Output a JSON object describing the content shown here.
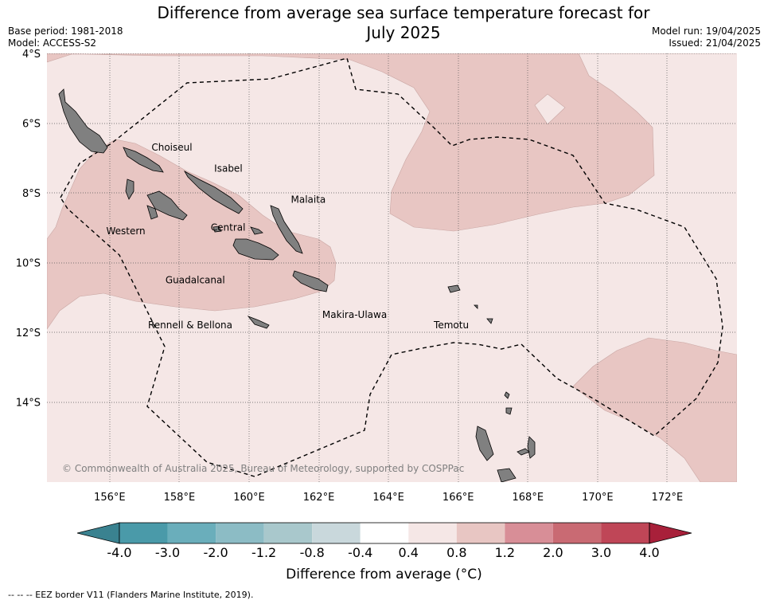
{
  "title_line1": "Difference from average sea surface temperature forecast for",
  "title_line2": "July 2025",
  "base_period": "Base period: 1981-2018",
  "model": "Model: ACCESS-S2",
  "model_run": "Model run: 19/04/2025",
  "issued": "Issued: 21/04/2025",
  "copyright": "© Commonwealth of Australia 2025, Bureau of Meteorology, supported by COSPPac",
  "footnote": "-- -- -- EEZ border V11 (Flanders Marine Institute, 2019).",
  "map": {
    "lon_ticks": [
      "156°E",
      "158°E",
      "160°E",
      "162°E",
      "164°E",
      "166°E",
      "168°E",
      "170°E",
      "172°E"
    ],
    "lat_ticks": [
      "4°S",
      "6°S",
      "8°S",
      "10°S",
      "12°S",
      "14°S"
    ],
    "provinces": [
      {
        "name": "Choiseul",
        "lon": 157.2,
        "lat": -6.7
      },
      {
        "name": "Isabel",
        "lon": 159.0,
        "lat": -7.3
      },
      {
        "name": "Malaita",
        "lon": 161.2,
        "lat": -8.2
      },
      {
        "name": "Western",
        "lon": 155.9,
        "lat": -9.1
      },
      {
        "name": "Central",
        "lon": 158.9,
        "lat": -9.0
      },
      {
        "name": "Guadalcanal",
        "lon": 157.6,
        "lat": -10.5
      },
      {
        "name": "Makira-Ulawa",
        "lon": 162.1,
        "lat": -11.5
      },
      {
        "name": "Rennell & Bellona",
        "lon": 157.1,
        "lat": -11.8
      },
      {
        "name": "Temotu",
        "lon": 165.3,
        "lat": -11.8
      }
    ],
    "ocean_background_color": "#f5e7e6",
    "warm_anomaly_color": "#e8c6c3",
    "land_color": "#7f7f7f"
  },
  "colorbar": {
    "title": "Difference from average (°C)",
    "tick_labels": [
      "-4.0",
      "-3.0",
      "-2.0",
      "-1.2",
      "-0.8",
      "-0.4",
      "0.4",
      "0.8",
      "1.2",
      "2.0",
      "3.0",
      "4.0"
    ],
    "colors": [
      "#4a9aa9",
      "#6aaebb",
      "#8cbcc5",
      "#a9c8cc",
      "#c9d8dc",
      "#ffffff",
      "#f5e7e6",
      "#e8c6c3",
      "#d88e97",
      "#c96a73",
      "#bf4657"
    ],
    "under_color": "#3a8290",
    "over_color": "#a8203a"
  }
}
